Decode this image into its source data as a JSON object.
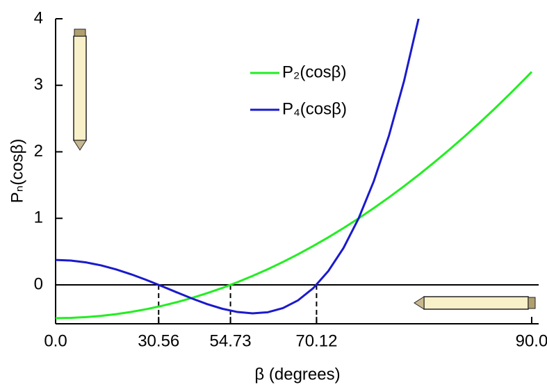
{
  "chart_data": {
    "type": "line",
    "xlabel": "β (degrees)",
    "ylabel": "Pₙ(cosβ)",
    "x": [
      0,
      0.05,
      0.1,
      0.15,
      0.2,
      0.25,
      0.3,
      0.35,
      0.4,
      0.45,
      0.5,
      0.55,
      0.6,
      0.65,
      0.7,
      0.75,
      0.8,
      0.85,
      0.9,
      0.95,
      1.0,
      1.05,
      1.1,
      1.15,
      1.2,
      1.25,
      1.3,
      1.35,
      1.4,
      1.45,
      1.5,
      1.55,
      1.571
    ],
    "series": [
      {
        "name": "P₂(cosβ)",
        "color": "#22ee22",
        "values": [
          -0.5,
          -0.4963,
          -0.485,
          -0.4663,
          -0.44,
          -0.4063,
          -0.365,
          -0.3163,
          -0.26,
          -0.1963,
          -0.125,
          -0.0463,
          0.04,
          0.1338,
          0.235,
          0.3438,
          0.46,
          0.5838,
          0.715,
          0.8538,
          1.0,
          1.1538,
          1.315,
          1.4838,
          1.66,
          1.8438,
          2.035,
          2.2338,
          2.44,
          2.6538,
          2.875,
          3.1038,
          3.202
        ]
      },
      {
        "name": "P₄(cosβ)",
        "color": "#1a1acc",
        "values": [
          0.375,
          0.3656,
          0.3379,
          0.2928,
          0.232,
          0.1577,
          0.0729,
          -0.0187,
          -0.113,
          -0.205,
          -0.2891,
          -0.359,
          -0.408,
          -0.4284,
          -0.4121,
          -0.3501,
          -0.233,
          -0.0506,
          0.2079,
          0.5541,
          1.0,
          1.5585,
          2.2429,
          3.0675,
          4.047,
          null,
          null,
          null,
          null,
          null,
          null,
          null,
          null
        ]
      }
    ],
    "xlim": [
      0,
      1.594
    ],
    "ylim": [
      -0.585,
      4
    ],
    "xticks": [
      {
        "value": 0,
        "label": "0.0"
      },
      {
        "value": 0.34,
        "label": "30.56"
      },
      {
        "value": 0.577,
        "label": "54.73"
      },
      {
        "value": 0.861,
        "label": "70.12"
      },
      {
        "value": 1.571,
        "label": "90.0"
      }
    ],
    "yticks": [
      0,
      1,
      2,
      3,
      4
    ],
    "legend": "upper center"
  }
}
